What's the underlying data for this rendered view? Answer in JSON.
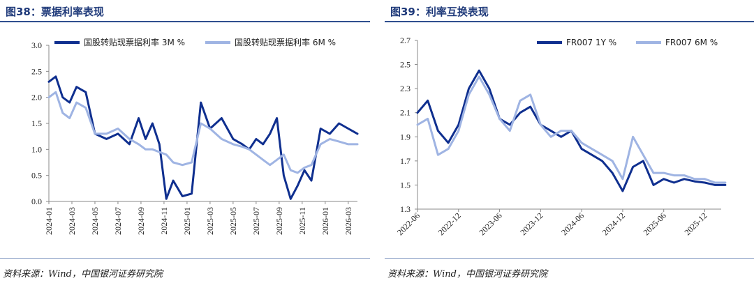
{
  "chart_data": [
    {
      "type": "line",
      "panel_title": "图38：票据利率表现",
      "title": "",
      "xlabel": "",
      "ylabel": "",
      "ylim": [
        0.0,
        3.0
      ],
      "yticks": [
        "0.0",
        "0.5",
        "1.0",
        "1.5",
        "2.0",
        "2.5",
        "3.0"
      ],
      "xticks": [
        "2024-01",
        "2024-03",
        "2024-05",
        "2024-07",
        "2024-09",
        "2024-11",
        "2025-01",
        "2025-03",
        "2025-05",
        "2025-07",
        "2025-09",
        "2025-11",
        "2026-01",
        "2026-03"
      ],
      "legend_position": "top",
      "source": "资料来源：Wind，中国银河证券研究院",
      "series": [
        {
          "name": "国股转贴现票据利率 3M %",
          "color": "#0f2f8f",
          "x": [
            0,
            0.3,
            0.6,
            0.9,
            1.2,
            1.6,
            2.0,
            2.5,
            3.0,
            3.5,
            3.9,
            4.2,
            4.5,
            4.8,
            5.1,
            5.4,
            5.8,
            6.2,
            6.6,
            7.0,
            7.5,
            8.0,
            8.4,
            8.7,
            9.0,
            9.3,
            9.6,
            9.9,
            10.2,
            10.5,
            10.8,
            11.1,
            11.4,
            11.8,
            12.2,
            12.6,
            13.0,
            13.4
          ],
          "values": [
            2.3,
            2.4,
            2.0,
            1.9,
            2.2,
            2.1,
            1.3,
            1.2,
            1.3,
            1.1,
            1.6,
            1.2,
            1.5,
            1.1,
            0.05,
            0.4,
            0.1,
            0.15,
            1.9,
            1.4,
            1.6,
            1.2,
            1.1,
            1.0,
            1.2,
            1.1,
            1.3,
            1.6,
            0.5,
            0.05,
            0.3,
            0.6,
            0.4,
            1.4,
            1.3,
            1.5,
            1.4,
            1.3
          ]
        },
        {
          "name": "国股转贴现票据利率 6M %",
          "color": "#9fb4e3",
          "x": [
            0,
            0.3,
            0.6,
            0.9,
            1.2,
            1.6,
            2.0,
            2.5,
            3.0,
            3.5,
            3.9,
            4.2,
            4.5,
            4.8,
            5.1,
            5.4,
            5.8,
            6.2,
            6.6,
            7.0,
            7.5,
            8.0,
            8.4,
            8.7,
            9.0,
            9.3,
            9.6,
            9.9,
            10.2,
            10.5,
            10.8,
            11.1,
            11.4,
            11.8,
            12.2,
            12.6,
            13.0,
            13.4
          ],
          "values": [
            2.0,
            2.1,
            1.7,
            1.6,
            1.9,
            1.8,
            1.3,
            1.3,
            1.4,
            1.2,
            1.1,
            1.0,
            1.0,
            0.95,
            0.9,
            0.75,
            0.7,
            0.75,
            1.5,
            1.4,
            1.2,
            1.1,
            1.05,
            1.0,
            0.9,
            0.8,
            0.7,
            0.8,
            0.9,
            0.6,
            0.55,
            0.65,
            0.7,
            1.1,
            1.2,
            1.15,
            1.1,
            1.1
          ]
        }
      ]
    },
    {
      "type": "line",
      "panel_title": "图39：利率互换表现",
      "title": "",
      "xlabel": "",
      "ylabel": "",
      "ylim": [
        1.3,
        2.7
      ],
      "yticks": [
        "1.3",
        "1.5",
        "1.7",
        "1.9",
        "2.1",
        "2.3",
        "2.5",
        "2.7"
      ],
      "xticks": [
        "2022-06",
        "2022-12",
        "2023-06",
        "2023-12",
        "2024-06",
        "2024-12",
        "2025-06",
        "2025-12"
      ],
      "legend_position": "top-right",
      "source": "资料来源：Wind，中国银河证券研究院",
      "series": [
        {
          "name": "FR007 1Y %",
          "color": "#0f2f8f",
          "x": [
            0,
            0.25,
            0.5,
            0.75,
            1.0,
            1.25,
            1.5,
            1.75,
            2.0,
            2.25,
            2.5,
            2.75,
            3.0,
            3.25,
            3.5,
            3.75,
            4.0,
            4.25,
            4.5,
            4.75,
            5.0,
            5.25,
            5.5,
            5.75,
            6.0,
            6.25,
            6.5,
            6.75,
            7.0,
            7.25,
            7.5
          ],
          "values": [
            2.1,
            2.2,
            1.95,
            1.85,
            2.0,
            2.3,
            2.45,
            2.3,
            2.05,
            2.0,
            2.1,
            2.15,
            2.0,
            1.95,
            1.9,
            1.95,
            1.8,
            1.75,
            1.7,
            1.6,
            1.45,
            1.65,
            1.7,
            1.5,
            1.55,
            1.52,
            1.55,
            1.53,
            1.52,
            1.5,
            1.5
          ]
        },
        {
          "name": "FR007 6M %",
          "color": "#9fb4e3",
          "x": [
            0,
            0.25,
            0.5,
            0.75,
            1.0,
            1.25,
            1.5,
            1.75,
            2.0,
            2.25,
            2.5,
            2.75,
            3.0,
            3.25,
            3.5,
            3.75,
            4.0,
            4.25,
            4.5,
            4.75,
            5.0,
            5.25,
            5.5,
            5.75,
            6.0,
            6.25,
            6.5,
            6.75,
            7.0,
            7.25,
            7.5
          ],
          "values": [
            2.0,
            2.05,
            1.75,
            1.8,
            1.95,
            2.25,
            2.4,
            2.25,
            2.05,
            1.95,
            2.2,
            2.25,
            2.0,
            1.9,
            1.95,
            1.95,
            1.85,
            1.8,
            1.75,
            1.7,
            1.55,
            1.9,
            1.75,
            1.6,
            1.6,
            1.58,
            1.58,
            1.55,
            1.55,
            1.52,
            1.52
          ]
        }
      ]
    }
  ]
}
